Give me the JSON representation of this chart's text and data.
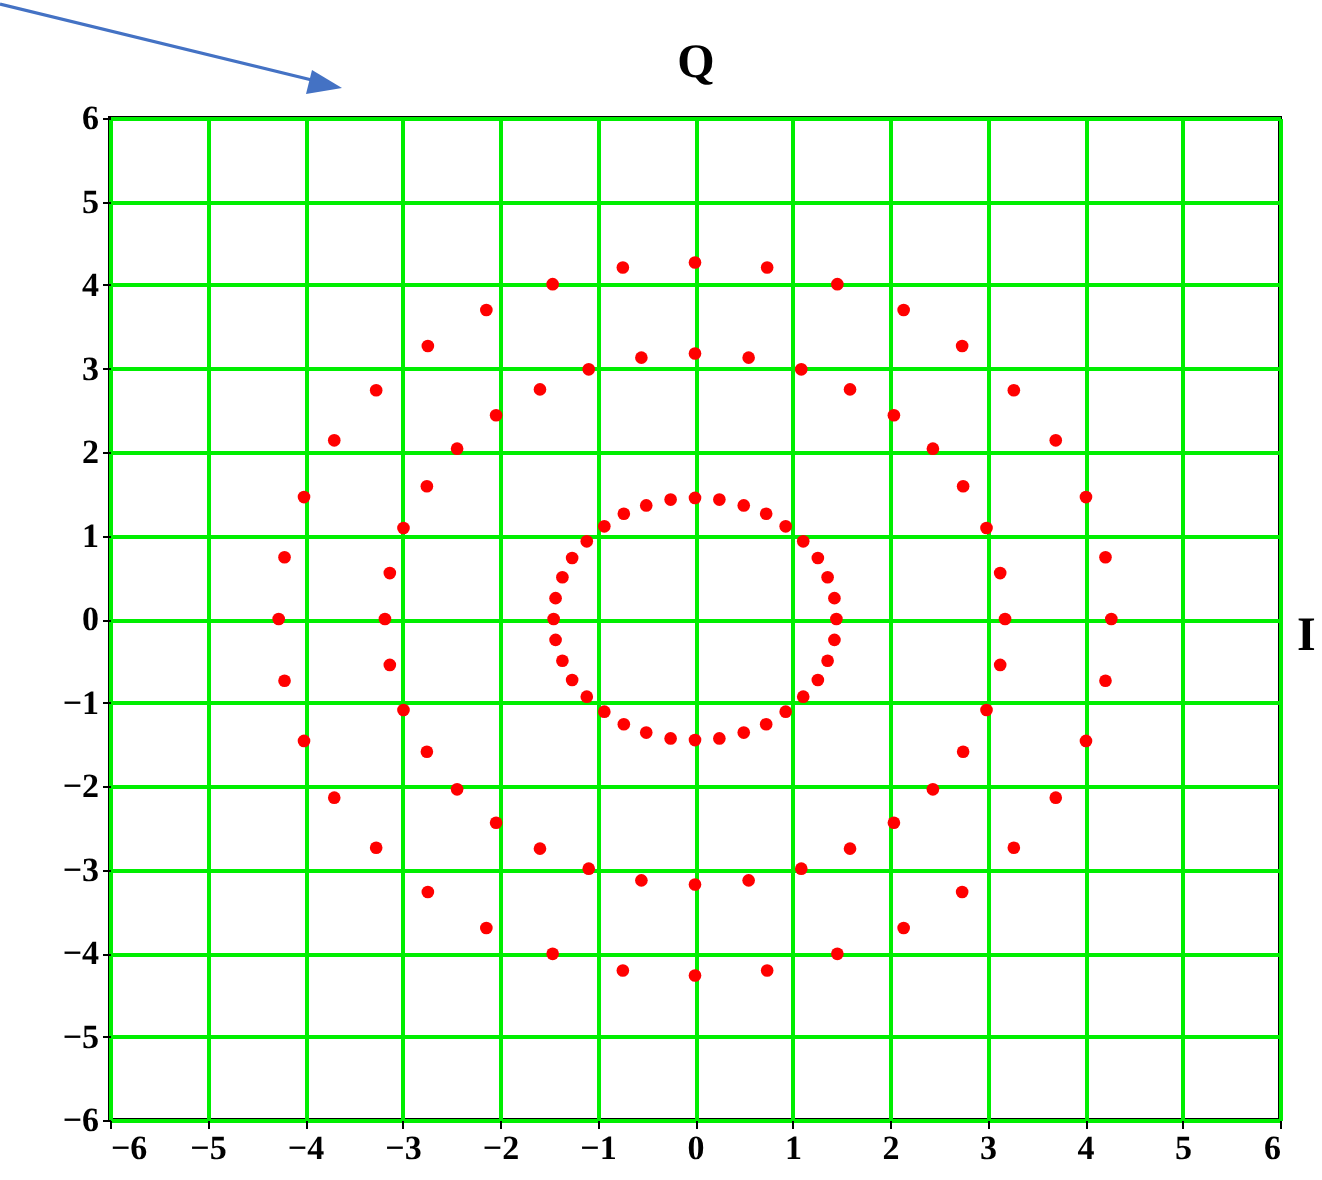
{
  "chart_data": {
    "type": "scatter",
    "ylabel": "Q",
    "xlabel": "I",
    "xlim": [
      -6,
      6
    ],
    "ylim": [
      -6,
      6
    ],
    "xticks": [
      -6,
      -5,
      -4,
      -3,
      -2,
      -1,
      0,
      1,
      2,
      3,
      4,
      5,
      6
    ],
    "yticks": [
      -6,
      -5,
      -4,
      -3,
      -2,
      -1,
      0,
      1,
      2,
      3,
      4,
      5,
      6
    ],
    "grid": true,
    "marker": "circle",
    "series": [
      {
        "color": "#ff0000",
        "x": [
          4.27,
          4.21,
          4.01,
          3.7,
          3.27,
          2.74,
          2.14,
          1.46,
          0.74,
          0,
          -0.74,
          -1.46,
          -2.14,
          -2.74,
          -3.27,
          -3.7,
          -4.01,
          -4.21,
          -4.27,
          -4.21,
          -4.01,
          -3.7,
          -3.27,
          -2.74,
          -2.14,
          -1.46,
          -0.74,
          0,
          0.74,
          1.46,
          2.14,
          2.74,
          3.27,
          3.7,
          4.01,
          4.21
        ],
        "values": [
          0,
          0.74,
          1.46,
          2.14,
          2.74,
          3.27,
          3.7,
          4.01,
          4.21,
          4.27,
          4.21,
          4.01,
          3.7,
          3.27,
          2.74,
          2.14,
          1.46,
          0.74,
          0,
          -0.74,
          -1.46,
          -2.14,
          -2.74,
          -3.27,
          -3.7,
          -4.01,
          -4.21,
          -4.27,
          -4.21,
          -4.01,
          -3.7,
          -3.27,
          -2.74,
          -2.14,
          -1.46,
          -0.74
        ]
      },
      {
        "color": "#ff0000",
        "x": [
          3.18,
          3.13,
          2.99,
          2.75,
          2.44,
          2.04,
          1.59,
          1.09,
          0.55,
          0,
          -0.55,
          -1.09,
          -1.59,
          -2.04,
          -2.44,
          -2.75,
          -2.99,
          -3.13,
          -3.18,
          -3.13,
          -2.99,
          -2.75,
          -2.44,
          -2.04,
          -1.59,
          -1.09,
          -0.55,
          0,
          0.55,
          1.09,
          1.59,
          2.04,
          2.44,
          2.75,
          2.99,
          3.13
        ],
        "values": [
          0,
          0.55,
          1.09,
          1.59,
          2.04,
          2.44,
          2.75,
          2.99,
          3.13,
          3.18,
          3.13,
          2.99,
          2.75,
          2.44,
          2.04,
          1.59,
          1.09,
          0.55,
          0,
          -0.55,
          -1.09,
          -1.59,
          -2.04,
          -2.44,
          -2.75,
          -2.99,
          -3.13,
          -3.18,
          -3.13,
          -2.99,
          -2.75,
          -2.44,
          -2.04,
          -1.59,
          -1.09,
          -0.55
        ]
      },
      {
        "color": "#ff0000",
        "x": [
          1.45,
          1.43,
          1.36,
          1.26,
          1.11,
          0.93,
          0.73,
          0.5,
          0.25,
          0,
          -0.25,
          -0.5,
          -0.73,
          -0.93,
          -1.11,
          -1.26,
          -1.36,
          -1.43,
          -1.45,
          -1.43,
          -1.36,
          -1.26,
          -1.11,
          -0.93,
          -0.73,
          -0.5,
          -0.25,
          0,
          0.25,
          0.5,
          0.73,
          0.93,
          1.11,
          1.26,
          1.36,
          1.43
        ],
        "values": [
          0,
          0.25,
          0.5,
          0.73,
          0.93,
          1.11,
          1.26,
          1.36,
          1.43,
          1.45,
          1.43,
          1.36,
          1.26,
          1.11,
          0.93,
          0.73,
          0.5,
          0.25,
          0,
          -0.25,
          -0.5,
          -0.73,
          -0.93,
          -1.11,
          -1.26,
          -1.36,
          -1.43,
          -1.45,
          -1.43,
          -1.36,
          -1.26,
          -1.11,
          -0.93,
          -0.73,
          -0.5,
          -0.25
        ]
      }
    ]
  }
}
